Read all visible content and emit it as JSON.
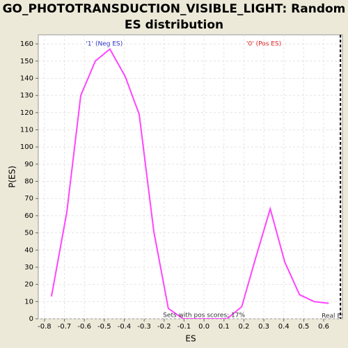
{
  "chart_data": {
    "type": "line",
    "title": "GO_PHOTOTRANSDUCTION_VISIBLE_LIGHT: Random ES distribution",
    "x_label": "ES",
    "y_label": "P(ES)",
    "x": [
      -0.765,
      -0.688,
      -0.618,
      -0.545,
      -0.472,
      -0.395,
      -0.325,
      -0.252,
      -0.179,
      -0.105,
      -0.032,
      0.042,
      0.115,
      0.189,
      0.258,
      0.332,
      0.405,
      0.479,
      0.552,
      0.625
    ],
    "series": [
      {
        "name": "P(ES)",
        "color": "#ff44ff",
        "values": [
          13,
          62,
          130,
          150,
          157,
          141,
          119,
          51,
          6,
          0,
          0,
          0,
          0,
          7,
          35,
          64,
          33,
          14,
          10,
          9
        ]
      }
    ],
    "xlim": [
      -0.831,
      0.694
    ],
    "ylim": [
      0,
      165.3
    ],
    "xticks": [
      -0.8,
      -0.7,
      -0.6,
      -0.5,
      -0.4,
      -0.3,
      -0.2,
      -0.1,
      {
        "value": 0,
        "label": "0.0"
      },
      0.1,
      0.2,
      0.3,
      0.4,
      0.5,
      0.6
    ],
    "yticks": [
      0,
      10,
      20,
      30,
      40,
      50,
      60,
      70,
      80,
      90,
      100,
      110,
      120,
      130,
      140,
      150,
      160
    ],
    "grid": true,
    "annotations": [
      {
        "text": "'1' (Neg ES)",
        "x": -0.5,
        "y": 160,
        "color": "#3333cc"
      },
      {
        "text": "'0' (Pos ES)",
        "x": 0.3,
        "y": 160,
        "color": "#dd2222"
      },
      {
        "text": "Sets with pos scores: 17%",
        "x": 0,
        "y": 2,
        "color": "#333333"
      }
    ],
    "real_es": {
      "text": "Real ES",
      "value": 0.684
    }
  }
}
